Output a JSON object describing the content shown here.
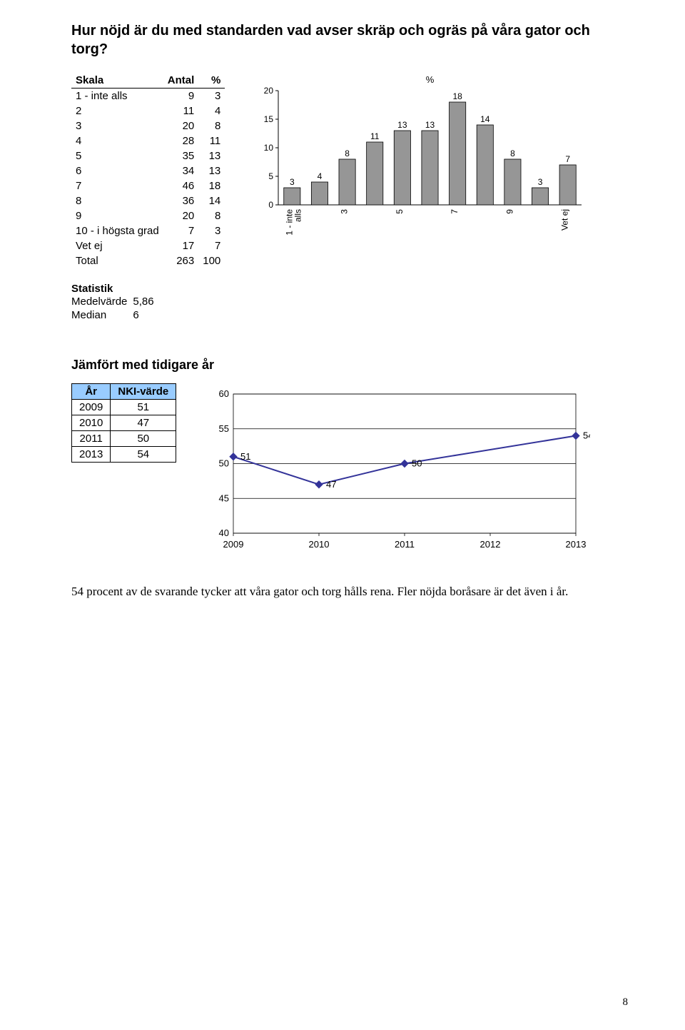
{
  "question_title": "Hur nöjd är du med standarden vad avser skräp och ogräs på våra gator och torg?",
  "skala": {
    "headers": [
      "Skala",
      "Antal",
      "%"
    ],
    "rows": [
      [
        "1 - inte alls",
        "9",
        "3"
      ],
      [
        "2",
        "11",
        "4"
      ],
      [
        "3",
        "20",
        "8"
      ],
      [
        "4",
        "28",
        "11"
      ],
      [
        "5",
        "35",
        "13"
      ],
      [
        "6",
        "34",
        "13"
      ],
      [
        "7",
        "46",
        "18"
      ],
      [
        "8",
        "36",
        "14"
      ],
      [
        "9",
        "20",
        "8"
      ],
      [
        "10 - i högsta grad",
        "7",
        "3"
      ],
      [
        "Vet ej",
        "17",
        "7"
      ],
      [
        "Total",
        "263",
        "100"
      ]
    ]
  },
  "statistik": {
    "title": "Statistik",
    "rows": [
      [
        "Medelvärde",
        "5,86"
      ],
      [
        "Median",
        "6"
      ]
    ]
  },
  "bar_chart": {
    "title": "%",
    "categories": [
      "1 - inte alls",
      "2",
      "3",
      "4",
      "5",
      "6",
      "7",
      "8",
      "9",
      "10",
      "Vet ej"
    ],
    "tick_labels": [
      "1 - inte\nalls",
      "",
      "3",
      "",
      "5",
      "",
      "7",
      "",
      "9",
      "",
      "Vet ej"
    ],
    "values": [
      3,
      4,
      8,
      11,
      13,
      13,
      18,
      14,
      8,
      3,
      7
    ],
    "y_ticks": [
      0,
      5,
      10,
      15,
      20
    ],
    "y_max": 20,
    "bar_fill": "#969696",
    "bar_stroke": "#000000",
    "axis_color": "#000000",
    "text_color": "#000000",
    "bg": "#ffffff",
    "label_fontsize": 12,
    "title_fontsize": 13
  },
  "jamfort_title": "Jämfört med tidigare år",
  "nki": {
    "headers": [
      "År",
      "NKI-värde"
    ],
    "rows": [
      [
        "2009",
        "51"
      ],
      [
        "2010",
        "47"
      ],
      [
        "2011",
        "50"
      ],
      [
        "2013",
        "54"
      ]
    ]
  },
  "line_chart": {
    "x_labels": [
      "2009",
      "2010",
      "2011",
      "2012",
      "2013"
    ],
    "x_values": [
      2009,
      2010,
      2011,
      2012,
      2013
    ],
    "data_years": [
      2009,
      2010,
      2011,
      2013
    ],
    "data_values": [
      51,
      47,
      50,
      54
    ],
    "y_ticks": [
      40,
      45,
      50,
      55,
      60
    ],
    "y_min": 40,
    "y_max": 60,
    "line_color": "#333399",
    "marker_color": "#333399",
    "grid_color": "#000000",
    "bg": "#ffffff",
    "label_fontsize": 13
  },
  "body_text": "54 procent av de svarande tycker att våra gator och torg hålls rena. Fler nöjda boråsare är det även i år.",
  "page_number": "8"
}
